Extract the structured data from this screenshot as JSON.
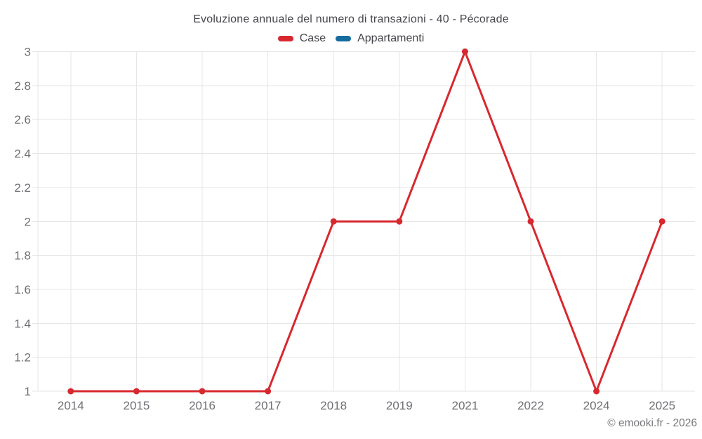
{
  "header": {
    "title": "Evoluzione annuale del numero di transazioni - 40 - Pécorade"
  },
  "legend": {
    "items": [
      {
        "label": "Case",
        "color": "#d7282f"
      },
      {
        "label": "Appartamenti",
        "color": "#176c9e"
      }
    ]
  },
  "footer": {
    "credit": "© emooki.fr - 2026"
  },
  "chart_data": {
    "type": "line",
    "title": "Evoluzione annuale del numero di transazioni - 40 - Pécorade",
    "categories": [
      "2014",
      "2015",
      "2016",
      "2017",
      "2018",
      "2019",
      "2021",
      "2022",
      "2024",
      "2025"
    ],
    "series": [
      {
        "name": "Case",
        "color": "#d7282f",
        "values": [
          1,
          1,
          1,
          1,
          2,
          2,
          3,
          2,
          1,
          2
        ]
      },
      {
        "name": "Appartamenti",
        "color": "#176c9e",
        "values": []
      }
    ],
    "ylim": [
      1,
      3
    ],
    "yticks": [
      1,
      1.2,
      1.4,
      1.6,
      1.8,
      2,
      2.2,
      2.4,
      2.6,
      2.8,
      3
    ],
    "xlabel": "",
    "ylabel": "",
    "grid": true,
    "legend_position": "top",
    "marker": "circle"
  },
  "colors": {
    "background": "#ffffff",
    "grid": "#e6e6e6",
    "axis_label": "#6f6f74",
    "title_text": "#45454b",
    "footer_text": "#77777c"
  }
}
